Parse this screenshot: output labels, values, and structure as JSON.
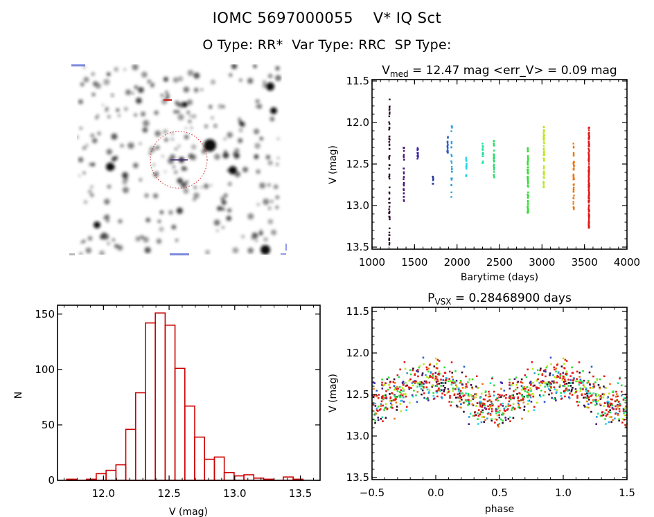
{
  "header": {
    "title": "IOMC 5697000055    V* IQ Sct",
    "subtitle": "O Type: RR*  Var Type: RRC  SP Type:"
  },
  "image_stamp": {
    "label": "Sky image stamp with target aperture circle",
    "marker_color": "#cc0000",
    "crosshair_color": "#4a2a7a",
    "corner_label_color": "#2233cc"
  },
  "chart_data": [
    {
      "id": "light_curve_time",
      "type": "scatter",
      "title_main": "V",
      "title_sub": "med",
      "title_rest": " = 12.47 mag <err_V> = 0.09 mag",
      "xlabel": "Barytime (days)",
      "ylabel": "V (mag)",
      "xlim": [
        1000,
        4000
      ],
      "ylim": [
        13.5,
        11.5
      ],
      "y_inverted": true,
      "xticks": [
        "1000",
        "1500",
        "2000",
        "2500",
        "3000",
        "3500",
        "4000"
      ],
      "xtick_values": [
        1000,
        1500,
        2000,
        2500,
        3000,
        3500,
        4000
      ],
      "yticks": [
        "11.5",
        "12.0",
        "12.5",
        "13.0",
        "13.5"
      ],
      "ytick_values": [
        11.5,
        12.0,
        12.5,
        13.0,
        13.5
      ],
      "grid": false,
      "seasons": [
        {
          "t": 1204,
          "vmin": 11.72,
          "vmax": 13.5,
          "n": 60,
          "color": "#2a0a2a"
        },
        {
          "t": 1375,
          "vmin": 12.3,
          "vmax": 13.0,
          "n": 30,
          "color": "#4b1a7a"
        },
        {
          "t": 1538,
          "vmin": 12.3,
          "vmax": 12.45,
          "n": 14,
          "color": "#3a22a8"
        },
        {
          "t": 1717,
          "vmin": 12.65,
          "vmax": 12.8,
          "n": 8,
          "color": "#2a3a9a"
        },
        {
          "t": 1889,
          "vmin": 12.17,
          "vmax": 12.37,
          "n": 16,
          "color": "#2a5acc"
        },
        {
          "t": 1937,
          "vmin": 12.0,
          "vmax": 12.95,
          "n": 26,
          "color": "#2aa0dc"
        },
        {
          "t": 2109,
          "vmin": 12.42,
          "vmax": 12.65,
          "n": 16,
          "color": "#22d8e8"
        },
        {
          "t": 2304,
          "vmin": 12.25,
          "vmax": 12.5,
          "n": 18,
          "color": "#22e0a0"
        },
        {
          "t": 2435,
          "vmin": 12.18,
          "vmax": 12.68,
          "n": 26,
          "color": "#22dd66"
        },
        {
          "t": 2834,
          "vmin": 12.3,
          "vmax": 13.1,
          "n": 60,
          "color": "#33dd33"
        },
        {
          "t": 3022,
          "vmin": 12.05,
          "vmax": 12.8,
          "n": 55,
          "color": "#b8e81a"
        },
        {
          "t": 3373,
          "vmin": 12.25,
          "vmax": 13.05,
          "n": 45,
          "color": "#ee7711"
        },
        {
          "t": 3552,
          "vmin": 12.05,
          "vmax": 13.27,
          "n": 160,
          "color": "#e21a1a"
        }
      ]
    },
    {
      "id": "histogram",
      "type": "bar",
      "title": "",
      "xlabel": "V (mag)",
      "ylabel": "N",
      "xlim": [
        11.65,
        13.65
      ],
      "ylim": [
        0,
        160
      ],
      "xticks": [
        "12.0",
        "12.5",
        "13.0",
        "13.5"
      ],
      "xtick_values": [
        12.0,
        12.5,
        13.0,
        13.5
      ],
      "yticks": [
        "0",
        "50",
        "100",
        "150"
      ],
      "ytick_values": [
        0,
        50,
        100,
        150
      ],
      "bar_color": "#cc0000",
      "bin_width": 0.075,
      "bin_start": [
        11.72,
        11.795,
        11.87,
        11.945,
        12.02,
        12.095,
        12.17,
        12.245,
        12.32,
        12.395,
        12.47,
        12.545,
        12.62,
        12.695,
        12.77,
        12.845,
        12.92,
        12.995,
        13.07,
        13.145,
        13.22,
        13.295,
        13.37,
        13.445
      ],
      "values": [
        1,
        0,
        1,
        6,
        9,
        14,
        46,
        79,
        142,
        151,
        140,
        101,
        67,
        39,
        19,
        21,
        7,
        4,
        5,
        2,
        1,
        0,
        3,
        1
      ]
    },
    {
      "id": "phase_curve",
      "type": "scatter",
      "title_main": "P",
      "title_sub": "VSX",
      "title_rest": " = 0.28468900 days",
      "xlabel": "phase",
      "ylabel": "V (mag)",
      "xlim": [
        -0.5,
        1.5
      ],
      "ylim": [
        13.5,
        11.5
      ],
      "y_inverted": true,
      "xticks": [
        "−0.5",
        "0.0",
        "0.5",
        "1.0",
        "1.5"
      ],
      "xtick_values": [
        -0.5,
        0.0,
        0.5,
        1.0,
        1.5
      ],
      "yticks": [
        "11.5",
        "12.0",
        "12.5",
        "13.0",
        "13.5"
      ],
      "ytick_values": [
        11.5,
        12.0,
        12.5,
        13.0,
        13.5
      ],
      "grid": false,
      "period_days": 0.284689,
      "mean_mag": 12.47,
      "semi_amplitude_mag": 0.15,
      "brightest_phase": -0.05,
      "scatter_sigma_mag": 0.12,
      "note": "Phased light curve repeated over two cycles; points colored by observing season (same colors as time plot)"
    }
  ]
}
